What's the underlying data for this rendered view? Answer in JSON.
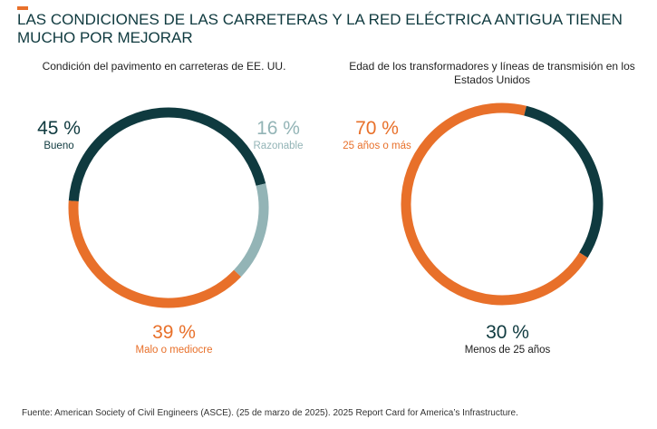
{
  "title": "LAS CONDICIONES DE LAS CARRETERAS Y LA RED ELÉCTRICA ANTIGUA TIENEN MUCHO POR MEJORAR",
  "colors": {
    "accent": "#e8702a",
    "dark_teal": "#0f3a3f",
    "light_teal": "#93b4b6"
  },
  "chart_data": [
    {
      "type": "pie",
      "donut": true,
      "title": "Condición del pavimento en carreteras de EE. UU.",
      "slices": [
        {
          "label": "Bueno",
          "pct_text": "45 %",
          "value": 45,
          "color": "#0f3a3f"
        },
        {
          "label": "Razonable",
          "pct_text": "16 %",
          "value": 16,
          "color": "#93b4b6"
        },
        {
          "label": "Malo o mediocre",
          "pct_text": "39 %",
          "value": 39,
          "color": "#e8702a"
        }
      ]
    },
    {
      "type": "pie",
      "donut": true,
      "title": "Edad de los transformadores y líneas de transmisión en los Estados Unidos",
      "slices": [
        {
          "label": "25 años o más",
          "pct_text": "70 %",
          "value": 70,
          "color": "#e8702a"
        },
        {
          "label": "Menos de 25 años",
          "pct_text": "30 %",
          "value": 30,
          "color": "#0f3a3f"
        }
      ]
    }
  ],
  "source": "Fuente: American Society of Civil Engineers (ASCE). (25 de marzo de 2025). 2025 Report Card for America’s Infrastructure."
}
